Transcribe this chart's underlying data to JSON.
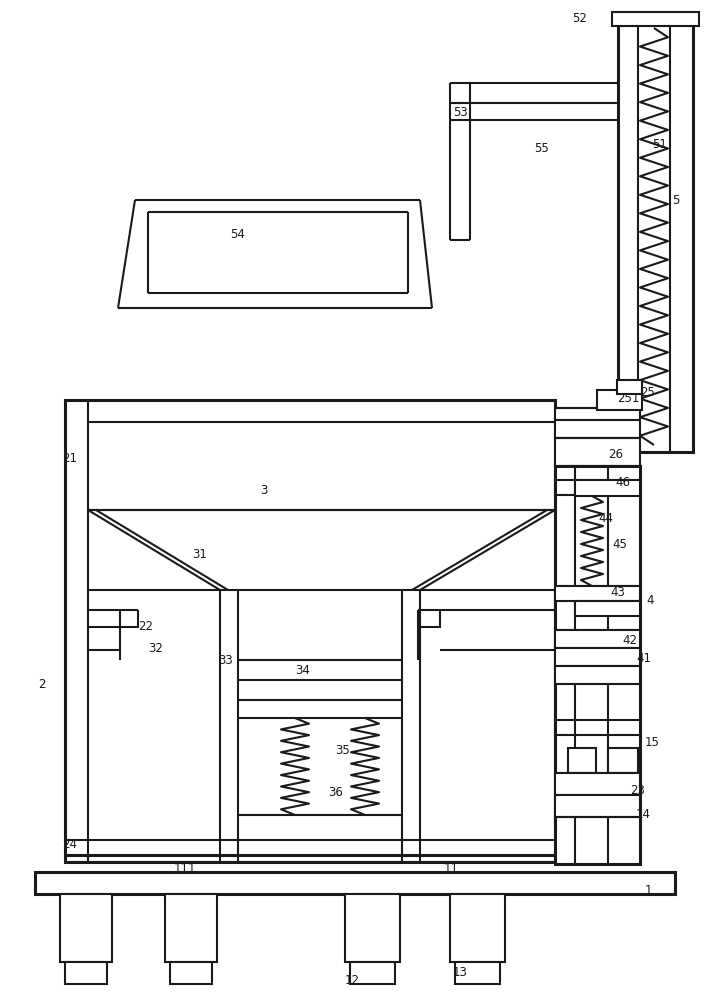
{
  "bg": "#ffffff",
  "lc": "#1a1a1a",
  "lw1": 2.2,
  "lw2": 1.5,
  "lw3": 1.0
}
